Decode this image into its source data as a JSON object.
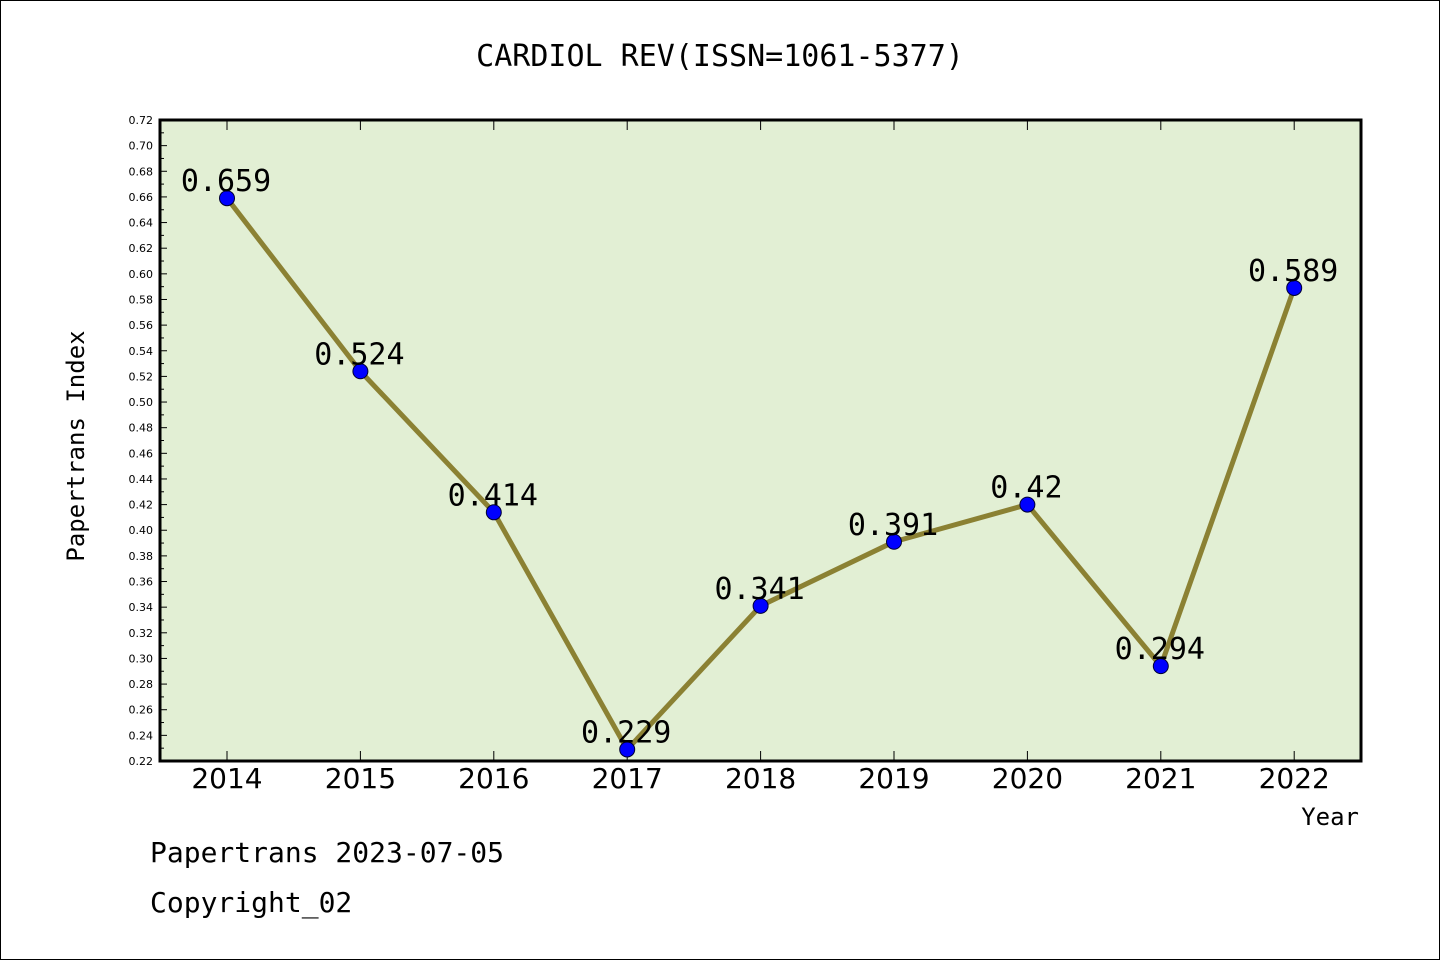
{
  "chart_data": {
    "type": "line",
    "title": "CARDIOL REV(ISSN=1061-5377)",
    "xlabel": "Year",
    "ylabel": "Papertrans Index",
    "x": [
      "2014",
      "2015",
      "2016",
      "2017",
      "2018",
      "2019",
      "2020",
      "2021",
      "2022"
    ],
    "values": [
      0.659,
      0.524,
      0.414,
      0.229,
      0.341,
      0.391,
      0.42,
      0.294,
      0.589
    ],
    "value_labels": [
      "0.659",
      "0.524",
      "0.414",
      "0.229",
      "0.341",
      "0.391",
      "0.42",
      "0.294",
      "0.589"
    ],
    "ylim": [
      0.22,
      0.72
    ],
    "yticks": [
      "0.22",
      "0.24",
      "0.26",
      "0.28",
      "0.30",
      "0.32",
      "0.34",
      "0.36",
      "0.38",
      "0.40",
      "0.42",
      "0.44",
      "0.46",
      "0.48",
      "0.50",
      "0.52",
      "0.54",
      "0.56",
      "0.58",
      "0.60",
      "0.62",
      "0.64",
      "0.66",
      "0.68",
      "0.70",
      "0.72"
    ],
    "grid": false,
    "colors": {
      "plot_background": "#e2efd4",
      "line": "#8b8133",
      "marker": "#0000ff"
    }
  },
  "footer": {
    "source": "Papertrans 2023-07-05",
    "copyright": "Copyright_02"
  }
}
